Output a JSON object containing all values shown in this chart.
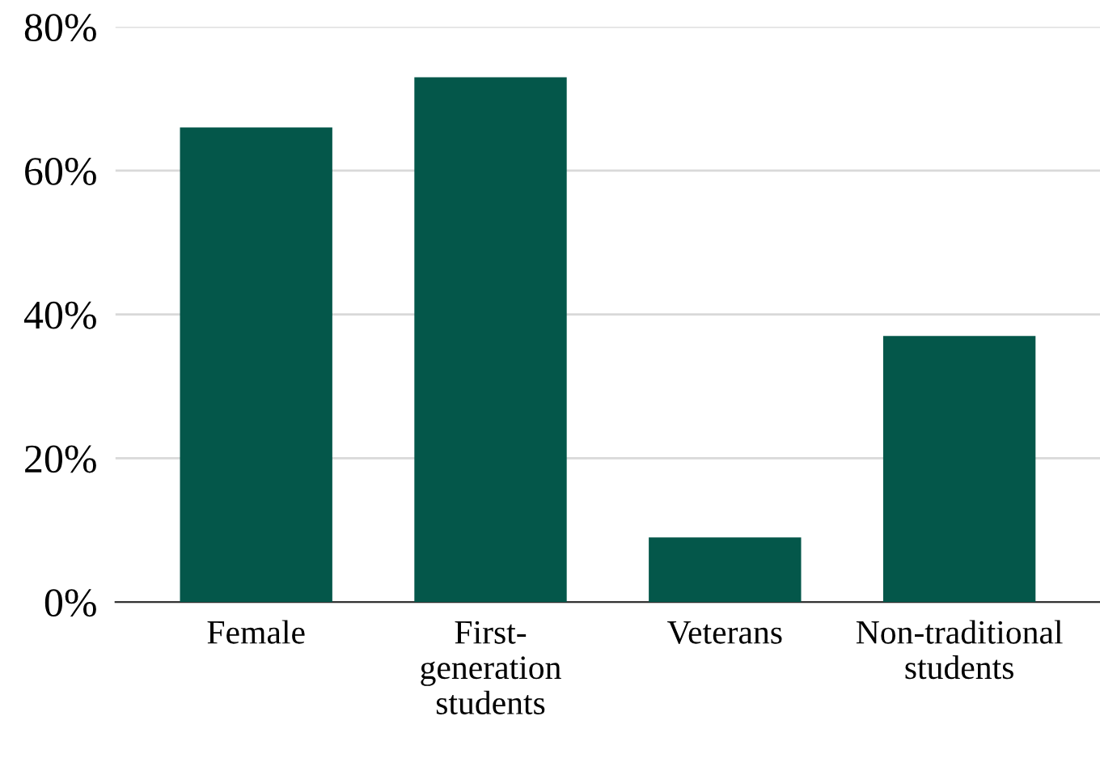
{
  "chart_data": {
    "type": "bar",
    "categories": [
      "Female",
      "First-\ngeneration\nstudents",
      "Veterans",
      "Non-traditional\nstudents"
    ],
    "values": [
      66,
      73,
      9,
      37
    ],
    "color": "#04574a",
    "ylim": [
      0,
      80
    ],
    "yticks": [
      {
        "value": 0,
        "label": "0%"
      },
      {
        "value": 20,
        "label": "20%"
      },
      {
        "value": 40,
        "label": "40%"
      },
      {
        "value": 60,
        "label": "60%"
      },
      {
        "value": 80,
        "label": "80%"
      }
    ],
    "grid": "y"
  }
}
